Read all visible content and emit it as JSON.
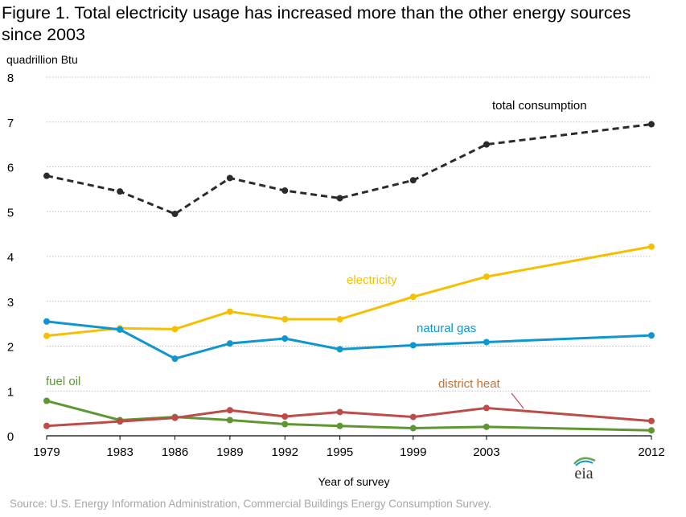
{
  "title_line1": "Figure 1. Total electricity usage has increased more than the other energy sources",
  "title_line2": "since 2003",
  "source": "Source: U.S. Energy Information Administration, Commercial Buildings Energy Consumption Survey.",
  "logo_text": "eia",
  "chart_data": {
    "type": "line",
    "ylabel": "quadrillion Btu",
    "xlabel": "Year of survey",
    "ylim": [
      0,
      8
    ],
    "yticks": [
      0,
      1,
      2,
      3,
      4,
      5,
      6,
      7,
      8
    ],
    "grid": "horizontal dotted",
    "x": [
      "1979",
      "1983",
      "1986",
      "1989",
      "1992",
      "1995",
      "1999",
      "2003",
      "2012"
    ],
    "series": [
      {
        "name": "total consumption",
        "color": "#2b2b2b",
        "dashed": true,
        "values": [
          5.8,
          5.45,
          4.95,
          5.75,
          5.47,
          5.3,
          5.7,
          6.5,
          6.95
        ]
      },
      {
        "name": "electricity",
        "color": "#f5c000",
        "dashed": false,
        "values": [
          2.23,
          2.4,
          2.38,
          2.77,
          2.6,
          2.6,
          3.1,
          3.55,
          4.22
        ]
      },
      {
        "name": "natural gas",
        "color": "#0e96d1",
        "dashed": false,
        "values": [
          2.55,
          2.37,
          1.72,
          2.06,
          2.17,
          1.93,
          2.02,
          2.09,
          2.24
        ]
      },
      {
        "name": "fuel oil",
        "color": "#5e9732",
        "dashed": false,
        "values": [
          0.78,
          0.35,
          0.42,
          0.35,
          0.26,
          0.22,
          0.17,
          0.2,
          0.12
        ]
      },
      {
        "name": "district heat",
        "color": "#bd4b48",
        "dashed": false,
        "values": [
          0.22,
          0.32,
          0.4,
          0.57,
          0.43,
          0.53,
          0.42,
          0.62,
          0.33
        ]
      }
    ],
    "series_label_colors": {
      "total consumption": "#000000",
      "electricity": "#f5c000",
      "natural gas": "#0e96d1",
      "fuel oil": "#5e9732",
      "district heat": "#c8702f"
    }
  }
}
